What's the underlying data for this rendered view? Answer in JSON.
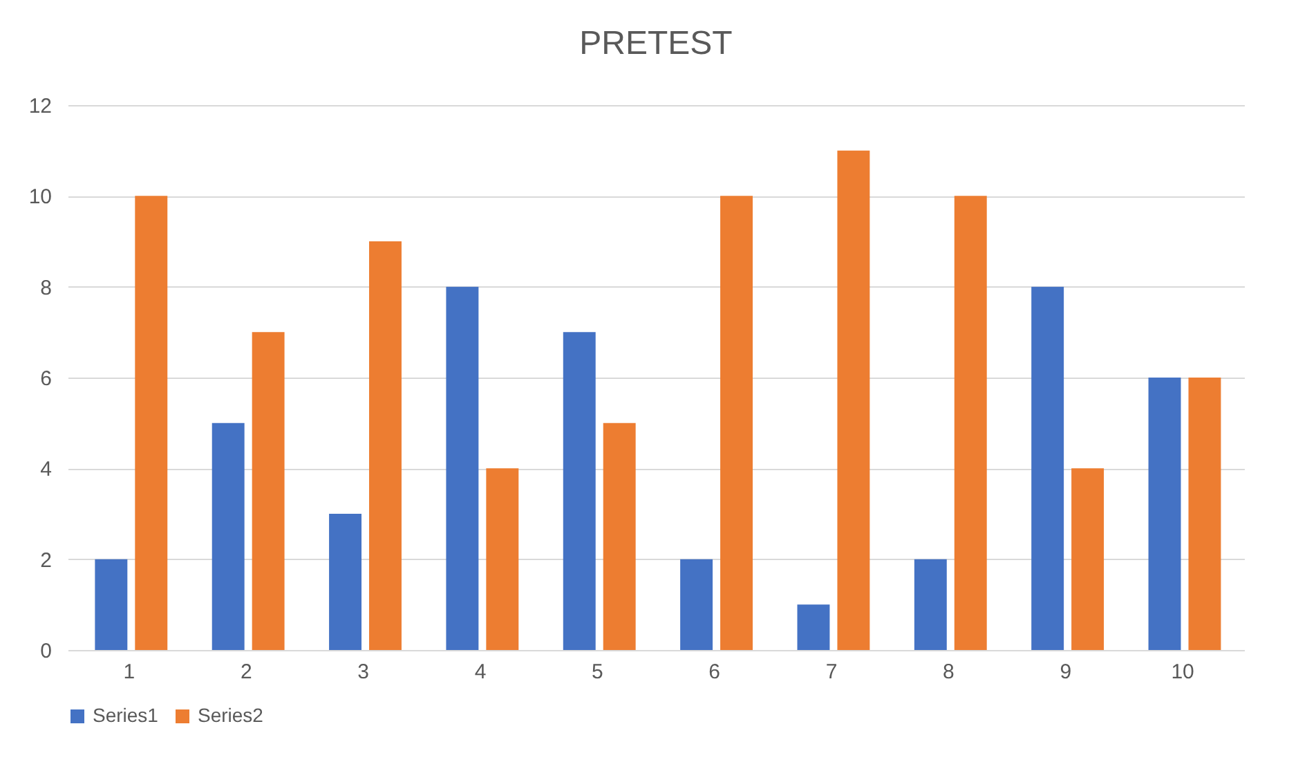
{
  "chart_data": {
    "type": "bar",
    "title": "PRETEST",
    "categories": [
      "1",
      "2",
      "3",
      "4",
      "5",
      "6",
      "7",
      "8",
      "9",
      "10"
    ],
    "series": [
      {
        "name": "Series1",
        "color": "#4472c4",
        "values": [
          2,
          5,
          3,
          8,
          7,
          2,
          1,
          2,
          8,
          6
        ]
      },
      {
        "name": "Series2",
        "color": "#ed7d31",
        "values": [
          10,
          7,
          9,
          4,
          5,
          10,
          11,
          10,
          4,
          6
        ]
      }
    ],
    "ylim": [
      0,
      12
    ],
    "yticks": [
      0,
      2,
      4,
      6,
      8,
      10,
      12
    ],
    "grid": "y",
    "legend": "bottom"
  }
}
